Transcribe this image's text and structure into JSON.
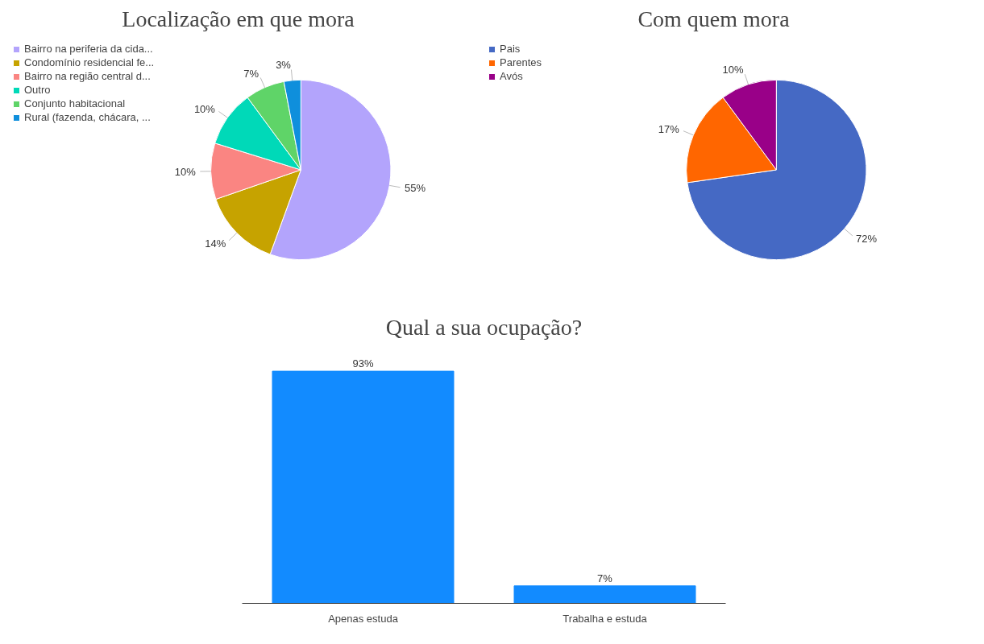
{
  "chart_data": [
    {
      "type": "pie",
      "title": "Localização em que mora",
      "categories": [
        "Bairro na periferia da cida...",
        "Condomínio residencial fe...",
        "Bairro na região central d...",
        "Outro",
        "Conjunto habitacional",
        "Rural (fazenda, chácara, ..."
      ],
      "values": [
        55,
        14,
        10,
        10,
        7,
        3
      ],
      "colors": [
        "#b3a4fc",
        "#c6a300",
        "#fa8582",
        "#00d9b8",
        "#5fd468",
        "#0f8fdc"
      ],
      "value_labels": [
        "55%",
        "14%",
        "10%",
        "10%",
        "7%",
        "3%"
      ],
      "legend": "top left"
    },
    {
      "type": "pie",
      "title": "Com quem mora",
      "categories": [
        "Pais",
        "Parentes",
        "Avós"
      ],
      "values": [
        72,
        17,
        10
      ],
      "colors": [
        "#4569c4",
        "#ff6600",
        "#990088"
      ],
      "value_labels": [
        "72%",
        "17%",
        "10%"
      ],
      "legend": "top left"
    },
    {
      "type": "bar",
      "title": "Qual a sua ocupação?",
      "categories": [
        "Apenas estuda",
        "Trabalha e estuda"
      ],
      "values": [
        93,
        7
      ],
      "color": "#128bff",
      "value_labels": [
        "93%",
        "7%"
      ]
    }
  ]
}
